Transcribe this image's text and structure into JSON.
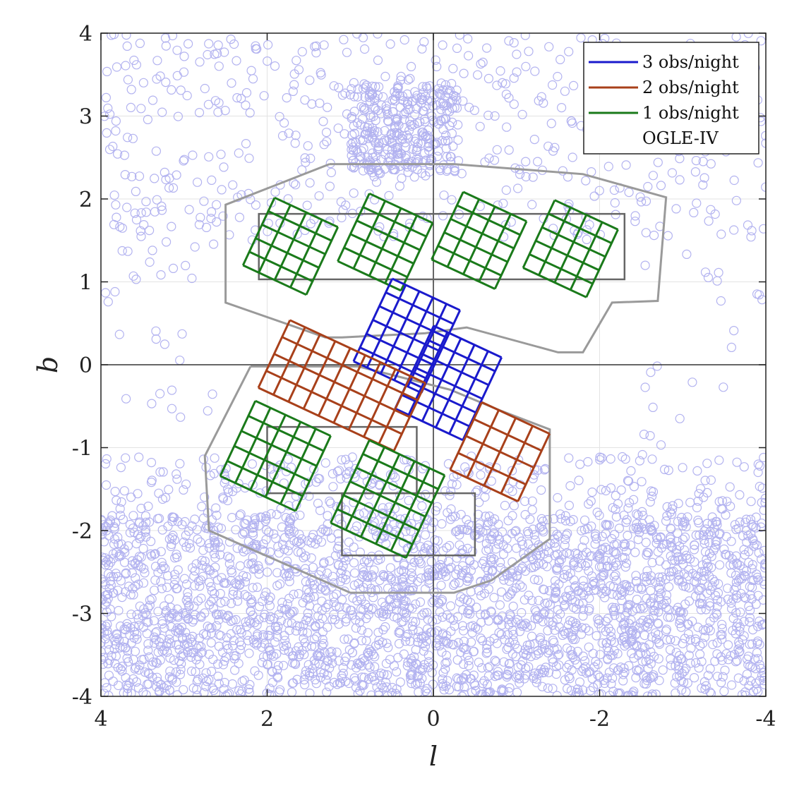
{
  "chart_data": {
    "type": "scatter",
    "xlabel": "l",
    "ylabel": "b",
    "xlim": [
      4,
      -4
    ],
    "ylim": [
      -4,
      4
    ],
    "x_ticks": [
      "4",
      "2",
      "0",
      "-2",
      "-4"
    ],
    "y_ticks": [
      "4",
      "3",
      "2",
      "1",
      "0",
      "-1",
      "-2",
      "-3",
      "-4"
    ],
    "x_tick_values": [
      4,
      2,
      0,
      -2,
      -4
    ],
    "y_tick_values": [
      4,
      3,
      2,
      1,
      0,
      -1,
      -2,
      -3,
      -4
    ],
    "grid": true,
    "legend_position": "top-right",
    "legend": [
      {
        "label": "3 obs/night",
        "color": "#1a1acc"
      },
      {
        "label": "2 obs/night",
        "color": "#a8401a"
      },
      {
        "label": "1 obs/night",
        "color": "#1a7a1a"
      },
      {
        "label": "OGLE-IV",
        "color": "#9a9a9a"
      }
    ],
    "background_points": {
      "marker": "open-circle",
      "color": "#b3b3f0",
      "regions": [
        {
          "l_range": [
            -4,
            4
          ],
          "b_range": [
            -4,
            -1.8
          ],
          "count": 2600
        },
        {
          "l_range": [
            -4,
            4
          ],
          "b_range": [
            -1.8,
            -1.1
          ],
          "count": 260
        },
        {
          "l_range": [
            -4,
            4
          ],
          "b_range": [
            1.5,
            4
          ],
          "count": 520
        },
        {
          "l_range": [
            -0.3,
            1.0
          ],
          "b_range": [
            2.3,
            3.4
          ],
          "count": 320
        },
        {
          "l_range": [
            2.5,
            4
          ],
          "b_range": [
            -0.7,
            1.5
          ],
          "count": 30
        },
        {
          "l_range": [
            -4,
            -2.5
          ],
          "b_range": [
            -1.5,
            1.5
          ],
          "count": 25
        }
      ]
    },
    "ogle_iv_outlines": [
      {
        "name": "north",
        "points": [
          [
            1.25,
            2.42
          ],
          [
            -0.25,
            2.42
          ],
          [
            -1.8,
            2.3
          ],
          [
            -2.8,
            2.02
          ],
          [
            -2.7,
            0.77
          ],
          [
            -2.15,
            0.75
          ],
          [
            -1.8,
            0.15
          ],
          [
            -1.5,
            0.15
          ],
          [
            -0.4,
            0.45
          ],
          [
            0.1,
            0.38
          ],
          [
            1.1,
            0.33
          ],
          [
            1.3,
            0.33
          ],
          [
            2.5,
            0.75
          ],
          [
            2.5,
            1.93
          ],
          [
            1.25,
            2.42
          ]
        ]
      },
      {
        "name": "south",
        "points": [
          [
            2.2,
            -0.02
          ],
          [
            0.9,
            -0.02
          ],
          [
            -0.2,
            -0.3
          ],
          [
            -0.8,
            -0.55
          ],
          [
            -1.4,
            -0.78
          ],
          [
            -1.4,
            -2.1
          ],
          [
            -0.7,
            -2.6
          ],
          [
            -0.25,
            -2.75
          ],
          [
            1.0,
            -2.75
          ],
          [
            2.7,
            -2.0
          ],
          [
            2.75,
            -1.1
          ],
          [
            2.2,
            -0.02
          ]
        ]
      }
    ],
    "dark_outlines": [
      {
        "name": "north-strip",
        "l_range": [
          2.1,
          -2.3
        ],
        "b_range": [
          1.03,
          1.82
        ]
      },
      {
        "name": "south-strip",
        "l_range": [
          2.0,
          0.2
        ],
        "b_range": [
          -1.55,
          -0.75
        ]
      },
      {
        "name": "south-lower",
        "l_range": [
          1.1,
          -0.5
        ],
        "b_range": [
          -2.3,
          -1.55
        ]
      }
    ],
    "survey_fields": [
      {
        "color": "#1a7a1a",
        "center": [
          1.72,
          1.43
        ],
        "half_l": 0.42,
        "half_b": 0.45,
        "angle": 25,
        "nl": 4,
        "nb": 5
      },
      {
        "color": "#1a7a1a",
        "center": [
          0.58,
          1.48
        ],
        "half_l": 0.42,
        "half_b": 0.45,
        "angle": 25,
        "nl": 4,
        "nb": 5
      },
      {
        "color": "#1a7a1a",
        "center": [
          -0.55,
          1.5
        ],
        "half_l": 0.42,
        "half_b": 0.45,
        "angle": 25,
        "nl": 4,
        "nb": 5
      },
      {
        "color": "#1a7a1a",
        "center": [
          -1.65,
          1.4
        ],
        "half_l": 0.42,
        "half_b": 0.45,
        "angle": 25,
        "nl": 4,
        "nb": 5
      },
      {
        "color": "#1a1acc",
        "center": [
          0.32,
          0.35
        ],
        "half_l": 0.45,
        "half_b": 0.55,
        "angle": 25,
        "nl": 5,
        "nb": 6
      },
      {
        "color": "#1a1acc",
        "center": [
          -0.18,
          -0.22
        ],
        "half_l": 0.45,
        "half_b": 0.55,
        "angle": 25,
        "nl": 5,
        "nb": 6
      },
      {
        "color": "#a8401a",
        "center": [
          1.1,
          -0.25
        ],
        "half_l": 0.9,
        "half_b": 0.45,
        "angle": 25,
        "nl": 9,
        "nb": 4
      },
      {
        "color": "#a8401a",
        "center": [
          -0.8,
          -1.05
        ],
        "half_l": 0.45,
        "half_b": 0.45,
        "angle": 25,
        "nl": 4,
        "nb": 4
      },
      {
        "color": "#1a7a1a",
        "center": [
          1.9,
          -1.1
        ],
        "half_l": 0.5,
        "half_b": 0.5,
        "angle": 25,
        "nl": 5,
        "nb": 5
      },
      {
        "color": "#1a7a1a",
        "center": [
          0.55,
          -1.62
        ],
        "half_l": 0.5,
        "half_b": 0.55,
        "angle": 25,
        "nl": 5,
        "nb": 6
      }
    ]
  }
}
